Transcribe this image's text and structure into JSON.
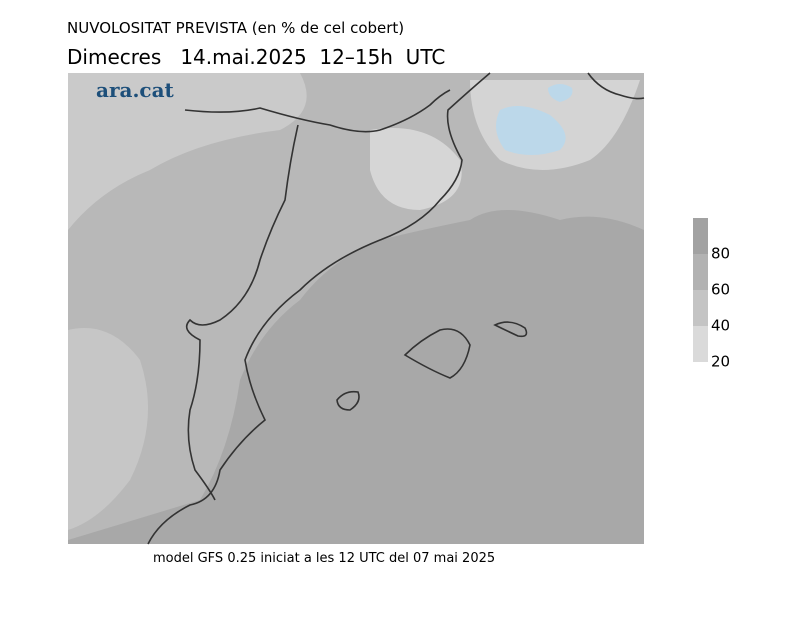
{
  "header": {
    "title": "NUVOLOSITAT PREVISTA (en % de cel cobert)",
    "subtitle": "Dimecres   14.mai.2025  12–15h  UTC"
  },
  "logo": "ara.cat",
  "footer": "model GFS 0.25 iniciat a les 12 UTC del 07 mai 2025",
  "legend": {
    "ticks": [
      80,
      60,
      40,
      20
    ],
    "colors": [
      "#a2a2a2",
      "#b2b2b2",
      "#c4c4c4",
      "#dadada"
    ]
  }
}
